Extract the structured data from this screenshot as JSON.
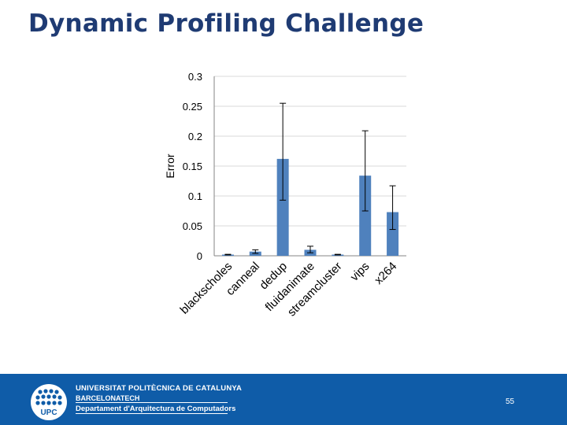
{
  "slide": {
    "title": "Dynamic Profiling Challenge",
    "page_number": "55",
    "footer": {
      "line1": "UNIVERSITAT POLITÈCNICA DE CATALUNYA",
      "line2": "BARCELONATECH",
      "line3": "Departament d'Arquitectura de Computadors",
      "logo_text": "UPC"
    }
  },
  "colors": {
    "bar": "#4f81bd",
    "title": "#1f3b73",
    "footer": "#0f5ca8"
  },
  "chart_data": {
    "type": "bar",
    "ylabel": "Error",
    "xlabel": "",
    "title": "",
    "ylim": [
      0,
      0.3
    ],
    "yticks": [
      "0",
      "0.05",
      "0.1",
      "0.15",
      "0.2",
      "0.25",
      "0.3"
    ],
    "categories": [
      "blackscholes",
      "canneal",
      "dedup",
      "fluidanimate",
      "streamcluster",
      "vips",
      "x264"
    ],
    "values": [
      0.002,
      0.007,
      0.162,
      0.01,
      0.002,
      0.134,
      0.073
    ],
    "error_low": [
      0.0015,
      0.004,
      0.093,
      0.005,
      0.0015,
      0.075,
      0.044
    ],
    "error_high": [
      0.0025,
      0.01,
      0.255,
      0.016,
      0.0025,
      0.209,
      0.117
    ],
    "grid": true
  }
}
